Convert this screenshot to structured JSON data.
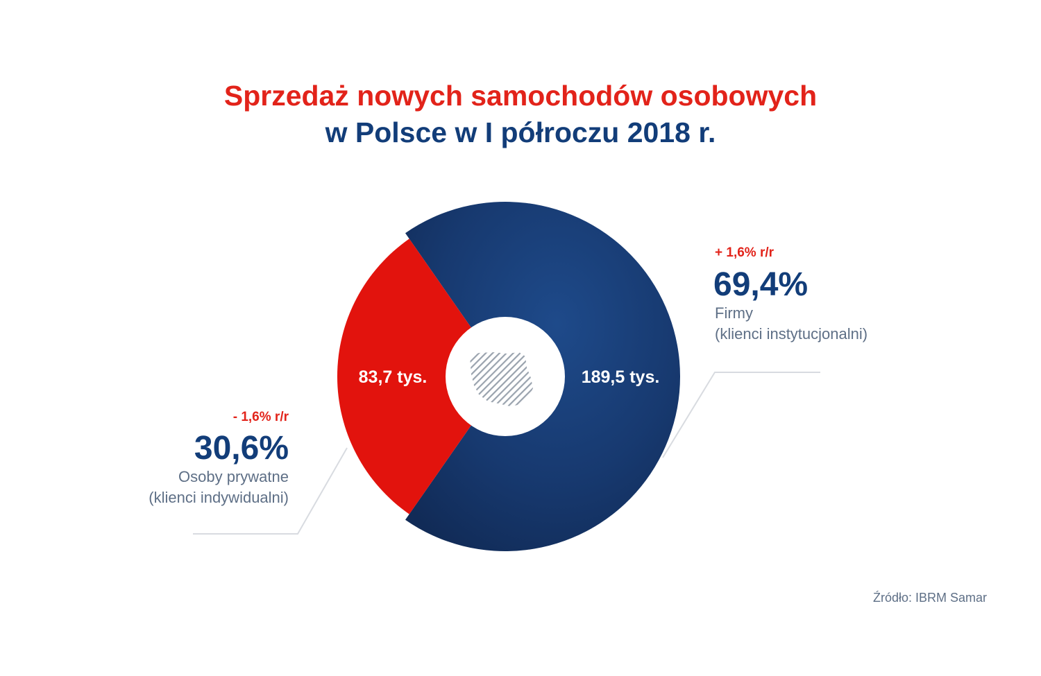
{
  "title": {
    "line1": "Sprzedaż nowych samochodów osobowych",
    "line2": "w Polsce w I półroczu 2018 r."
  },
  "colors": {
    "firms": "#163a74",
    "private": "#e2130d",
    "title_red": "#e2231a",
    "title_blue": "#123d79",
    "leader": "#d8dbe0"
  },
  "chart_data": {
    "type": "pie",
    "variant": "donut",
    "slices": [
      {
        "key": "firms",
        "value": 189.5,
        "percent": 69.4,
        "value_label": "189,5 tys.",
        "percent_label": "69,4%",
        "change_label": "+ 1,6% r/r",
        "category": "Firmy",
        "category_detail": "(klienci instytucjonalni)"
      },
      {
        "key": "private",
        "value": 83.7,
        "percent": 30.6,
        "value_label": "83,7 tys.",
        "percent_label": "30,6%",
        "change_label": "- 1,6% r/r",
        "category": "Osoby prywatne",
        "category_detail": "(klienci indywidualni)"
      }
    ],
    "center_icon": "poland-map-icon"
  },
  "source": "Źródło: IBRM Samar"
}
